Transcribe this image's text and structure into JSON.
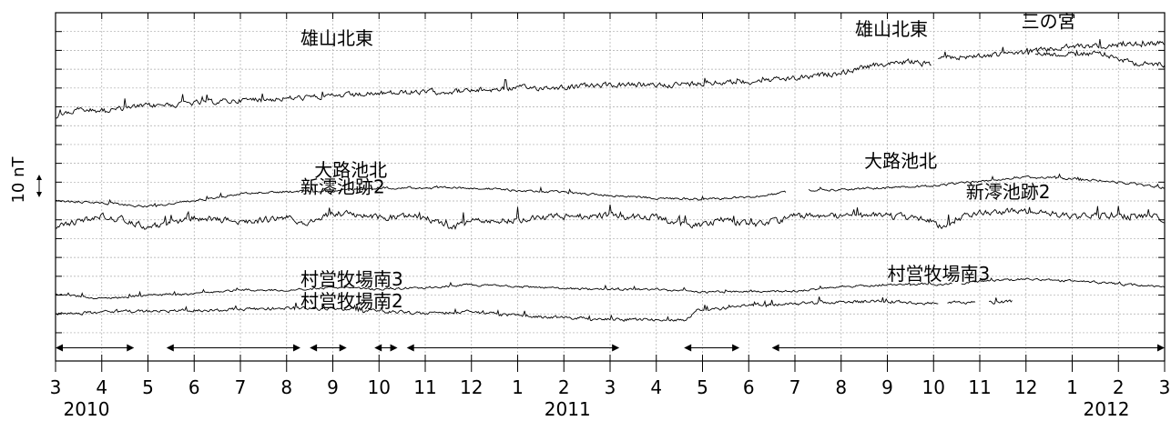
{
  "chart_data": {
    "type": "line",
    "ylabel": "10 nT",
    "months": [
      "3",
      "4",
      "5",
      "6",
      "7",
      "8",
      "9",
      "10",
      "11",
      "12",
      "1",
      "2",
      "3",
      "4",
      "5",
      "6",
      "7",
      "8",
      "9",
      "10",
      "11",
      "12",
      "1",
      "2",
      "3"
    ],
    "years": [
      {
        "label": "2010",
        "month_index": 0
      },
      {
        "label": "2011",
        "month_index": 11
      },
      {
        "label": "2012",
        "month_index": 23
      }
    ],
    "grid": true,
    "series": [
      {
        "name": "三の宮",
        "label_at": [
          20.9,
          0.8
        ],
        "points": [
          [
            21.2,
            2.15
          ],
          [
            21.6,
            2.2
          ],
          [
            22.0,
            2.25
          ],
          [
            22.4,
            2.15
          ],
          [
            22.8,
            2.3
          ],
          [
            23.2,
            2.6
          ],
          [
            23.6,
            2.75
          ],
          [
            24.0,
            2.7
          ]
        ],
        "noise": 0.12
      },
      {
        "name": "雄山北東",
        "label_at": [
          5.3,
          1.7
        ],
        "label2_at": [
          17.3,
          1.2
        ],
        "points": [
          [
            0,
            5.5
          ],
          [
            0.5,
            5.15
          ],
          [
            1,
            5.2
          ],
          [
            2,
            4.95
          ],
          [
            3,
            4.8
          ],
          [
            4,
            4.65
          ],
          [
            5,
            4.55
          ],
          [
            6,
            4.45
          ],
          [
            7,
            4.3
          ],
          [
            8,
            4.2
          ],
          [
            9,
            4.15
          ],
          [
            10,
            4.0
          ],
          [
            11,
            3.95
          ],
          [
            12,
            3.85
          ],
          [
            13,
            3.85
          ],
          [
            14,
            3.75
          ],
          [
            15,
            3.65
          ],
          [
            16,
            3.5
          ],
          [
            17,
            3.2
          ],
          [
            17.5,
            2.9
          ],
          [
            18,
            2.7
          ],
          [
            18.5,
            2.6
          ],
          [
            18.95,
            2.75
          ]
        ],
        "points2": [
          [
            19.1,
            2.4
          ],
          [
            20,
            2.3
          ],
          [
            21,
            2.1
          ],
          [
            22,
            1.8
          ],
          [
            23,
            1.7
          ],
          [
            24,
            1.6
          ]
        ],
        "noise": 0.12
      },
      {
        "name": "大路池北",
        "label_at": [
          5.6,
          8.7
        ],
        "label2_at": [
          17.5,
          8.2
        ],
        "points": [
          [
            0,
            10.0
          ],
          [
            1,
            10.1
          ],
          [
            2,
            10.3
          ],
          [
            3,
            10.0
          ],
          [
            4,
            9.6
          ],
          [
            5,
            9.5
          ],
          [
            6,
            9.45
          ],
          [
            7,
            9.3
          ],
          [
            8,
            9.3
          ],
          [
            9,
            9.3
          ],
          [
            10,
            9.45
          ],
          [
            11,
            9.55
          ],
          [
            12,
            9.7
          ],
          [
            13,
            9.85
          ],
          [
            14,
            9.9
          ],
          [
            15,
            9.8
          ],
          [
            15.8,
            9.55
          ]
        ],
        "points2": [
          [
            16.3,
            9.4
          ],
          [
            17,
            9.4
          ],
          [
            18,
            9.3
          ],
          [
            19,
            9.2
          ],
          [
            20,
            8.95
          ],
          [
            21,
            8.75
          ],
          [
            22,
            8.8
          ],
          [
            23,
            9.0
          ],
          [
            24,
            9.3
          ]
        ],
        "noise": 0.05
      },
      {
        "name": "新澪池跡2",
        "label_at": [
          5.3,
          9.6
        ],
        "label2_at": [
          19.7,
          9.85
        ],
        "points": [
          [
            0,
            11.3
          ],
          [
            0.5,
            11.1
          ],
          [
            1,
            10.8
          ],
          [
            1.5,
            11.0
          ],
          [
            2,
            11.4
          ],
          [
            3,
            10.9
          ],
          [
            4,
            11.1
          ],
          [
            5,
            10.9
          ],
          [
            5.5,
            11.2
          ],
          [
            6,
            10.6
          ],
          [
            7,
            10.9
          ],
          [
            8,
            10.8
          ],
          [
            8.5,
            11.4
          ],
          [
            9,
            11.1
          ],
          [
            10,
            11.0
          ],
          [
            10.5,
            10.9
          ],
          [
            11,
            10.8
          ],
          [
            12,
            10.8
          ],
          [
            13,
            10.9
          ],
          [
            13.5,
            11.2
          ],
          [
            14,
            11.3
          ],
          [
            14.5,
            10.9
          ],
          [
            15,
            11.3
          ],
          [
            15.5,
            11.1
          ],
          [
            16,
            10.8
          ],
          [
            17,
            10.8
          ],
          [
            18,
            10.8
          ],
          [
            19,
            11.0
          ],
          [
            19.2,
            11.5
          ],
          [
            19.5,
            11.0
          ],
          [
            20,
            10.6
          ],
          [
            21,
            10.5
          ],
          [
            22,
            10.8
          ],
          [
            23,
            10.8
          ],
          [
            24,
            10.9
          ]
        ],
        "noise": 0.14
      },
      {
        "name": "村営牧場南3",
        "label_at": [
          5.3,
          14.5
        ],
        "label2_at": [
          18.0,
          14.2
        ],
        "points": [
          [
            0,
            14.95
          ],
          [
            1,
            15.2
          ],
          [
            2,
            15.0
          ],
          [
            3,
            14.95
          ],
          [
            4,
            14.7
          ],
          [
            5,
            14.75
          ],
          [
            6,
            14.6
          ],
          [
            7,
            14.7
          ],
          [
            8,
            14.6
          ],
          [
            9,
            14.45
          ],
          [
            10,
            14.55
          ],
          [
            11,
            14.65
          ],
          [
            12,
            14.7
          ],
          [
            13,
            14.7
          ],
          [
            14,
            14.85
          ],
          [
            15,
            14.8
          ],
          [
            16,
            14.8
          ],
          [
            17,
            14.55
          ],
          [
            18,
            14.45
          ],
          [
            19.4,
            14.4
          ]
        ],
        "points2": [
          [
            19.6,
            14.4
          ],
          [
            20,
            14.25
          ],
          [
            21,
            14.15
          ],
          [
            22,
            14.25
          ],
          [
            23,
            14.4
          ],
          [
            24,
            14.6
          ]
        ],
        "noise": 0.05
      },
      {
        "name": "村営牧場南2",
        "label_at": [
          5.3,
          15.65
        ],
        "points": [
          [
            0,
            16.0
          ],
          [
            1,
            15.9
          ],
          [
            2,
            15.85
          ],
          [
            3,
            15.8
          ],
          [
            4,
            15.75
          ],
          [
            5,
            15.7
          ],
          [
            6,
            15.75
          ],
          [
            7,
            15.85
          ],
          [
            8,
            15.95
          ],
          [
            9,
            15.9
          ],
          [
            10,
            16.1
          ],
          [
            11,
            16.2
          ],
          [
            12,
            16.3
          ],
          [
            13,
            16.3
          ],
          [
            13.6,
            16.35
          ],
          [
            13.9,
            15.8
          ],
          [
            14.5,
            15.7
          ],
          [
            15,
            15.55
          ],
          [
            16,
            15.45
          ],
          [
            17,
            15.35
          ],
          [
            18,
            15.35
          ],
          [
            19,
            15.45
          ],
          [
            19.1,
            15.5
          ]
        ],
        "points2": [
          [
            19.3,
            15.4
          ],
          [
            19.9,
            15.4
          ]
        ],
        "points3": [
          [
            20.2,
            15.4
          ],
          [
            20.7,
            15.35
          ]
        ],
        "noise": 0.07
      }
    ],
    "data_intervals": [
      [
        0,
        1.7
      ],
      [
        2.4,
        5.3
      ],
      [
        5.5,
        6.3
      ],
      [
        6.9,
        7.4
      ],
      [
        7.6,
        12.2
      ],
      [
        13.6,
        14.8
      ],
      [
        15.5,
        24.0
      ]
    ]
  }
}
